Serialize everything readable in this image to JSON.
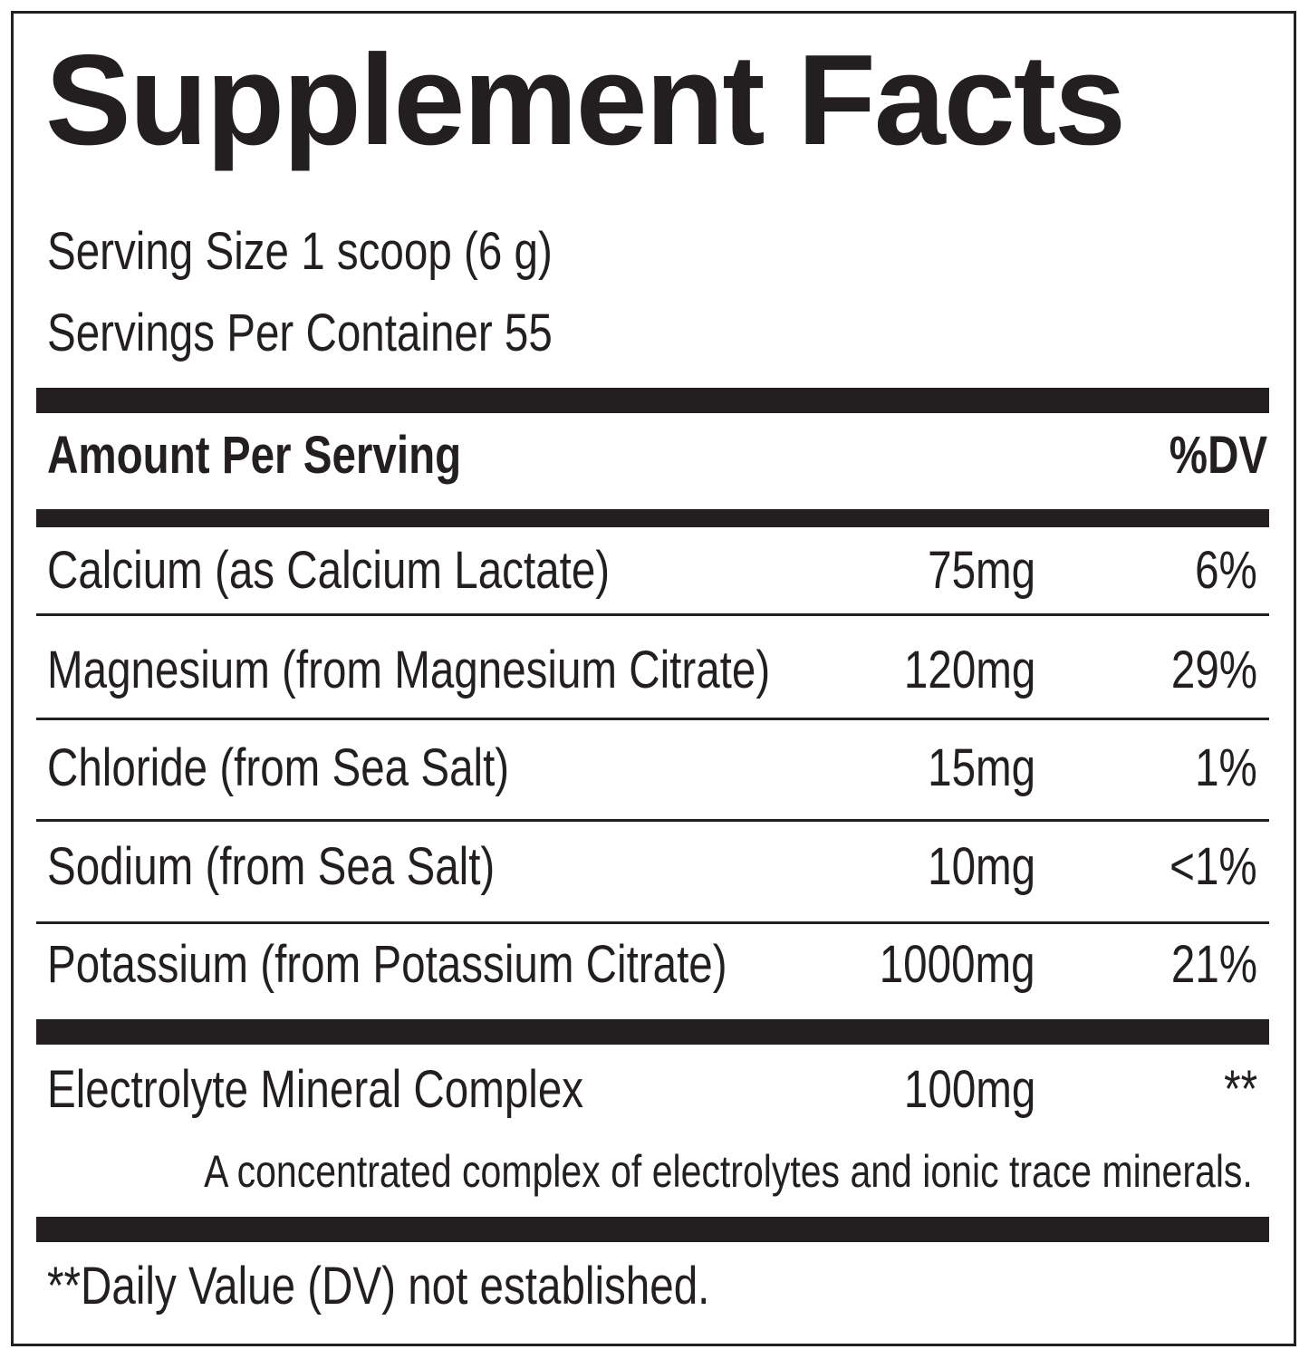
{
  "title": "Supplement Facts",
  "serving_size": "Serving Size 1 scoop (6 g)",
  "servings_per_container": "Servings Per Container 55",
  "header": {
    "amount": "Amount Per Serving",
    "dv": "%DV"
  },
  "rows": [
    {
      "name": "Calcium (as Calcium Lactate)",
      "amount": "75mg",
      "dv": "6%"
    },
    {
      "name": "Magnesium (from Magnesium Citrate)",
      "amount": "120mg",
      "dv": "29%"
    },
    {
      "name": "Chloride (from Sea Salt)",
      "amount": "15mg",
      "dv": "1%"
    },
    {
      "name": "Sodium (from Sea Salt)",
      "amount": "10mg",
      "dv": "<1%"
    },
    {
      "name": "Potassium (from Potassium Citrate)",
      "amount": "1000mg",
      "dv": "21%"
    }
  ],
  "complex": {
    "name": "Electrolyte Mineral Complex",
    "amount": "100mg",
    "dv": "**",
    "description": "A concentrated complex of electrolytes and ionic trace minerals."
  },
  "footnote": "**Daily Value (DV) not established."
}
